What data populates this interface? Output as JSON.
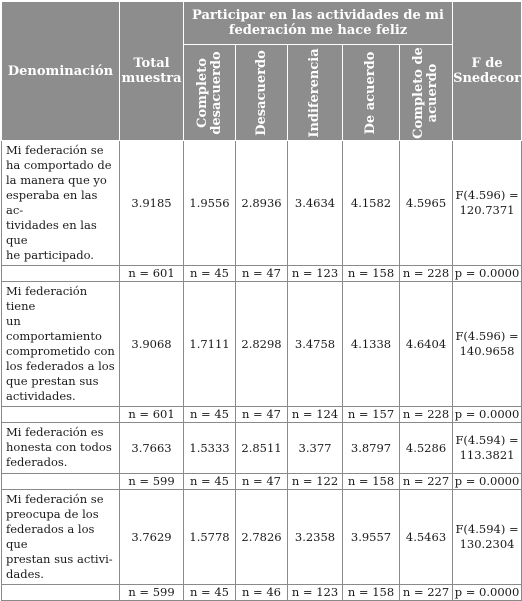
{
  "header": {
    "denominacion": "Denominación",
    "total_line1": "Total",
    "total_line2": "muestra",
    "group_line1": "Participar en las actividades de mi",
    "group_line2": "federación me hace feliz",
    "f_line1": "F de",
    "f_line2": "Snedecor",
    "columns": [
      {
        "line1": "Completo",
        "line2": "desacuerdo"
      },
      {
        "line1": "Desacuerdo",
        "line2": ""
      },
      {
        "line1": "Indiferencia",
        "line2": ""
      },
      {
        "line1": "De acuerdo",
        "line2": ""
      },
      {
        "line1": "Completo de",
        "line2": "acuerdo"
      }
    ]
  },
  "rows": [
    {
      "lines": [
        "Mi federación se",
        "ha comportado de",
        "la manera que yo",
        "esperaba en las ac-",
        "tividades en las que",
        "he participado."
      ],
      "total": "3.9185",
      "values": [
        "1.9556",
        "2.8936",
        "3.4634",
        "4.1582",
        "4.5965"
      ],
      "f_line1": "F(4.596) =",
      "f_line2": "120.7371",
      "n_total": "n = 601",
      "n_values": [
        "n = 45",
        "n = 47",
        "n = 123",
        "n = 158",
        "n = 228"
      ],
      "p": "p = 0.0000"
    },
    {
      "lines": [
        "Mi federación tiene",
        "un comportamiento",
        "comprometido con",
        "los federados a los",
        "que prestan sus",
        "actividades."
      ],
      "total": "3.9068",
      "values": [
        "1.7111",
        "2.8298",
        "3.4758",
        "4.1338",
        "4.6404"
      ],
      "f_line1": "F(4.596) =",
      "f_line2": "140.9658",
      "n_total": "n = 601",
      "n_values": [
        "n = 45",
        "n = 47",
        "n = 124",
        "n = 157",
        "n = 228"
      ],
      "p": "p = 0.0000"
    },
    {
      "lines": [
        "Mi federación es",
        "honesta con todos",
        "federados."
      ],
      "total": "3.7663",
      "values": [
        "1.5333",
        "2.8511",
        "3.377",
        "3.8797",
        "4.5286"
      ],
      "f_line1": "F(4.594) =",
      "f_line2": "113.3821",
      "n_total": "n = 599",
      "n_values": [
        "n = 45",
        "n = 47",
        "n = 122",
        "n = 158",
        "n = 227"
      ],
      "p": "p = 0.0000"
    },
    {
      "lines": [
        "Mi federación se",
        "preocupa de los",
        "federados a los que",
        "prestan sus activi-",
        "dades."
      ],
      "total": "3.7629",
      "values": [
        "1.5778",
        "2.7826",
        "3.2358",
        "3.9557",
        "4.5463"
      ],
      "f_line1": "F(4.594) =",
      "f_line2": "130.2304",
      "n_total": "n = 599",
      "n_values": [
        "n = 45",
        "n = 46",
        "n = 123",
        "n = 158",
        "n = 227"
      ],
      "p": "p = 0.0000"
    }
  ]
}
